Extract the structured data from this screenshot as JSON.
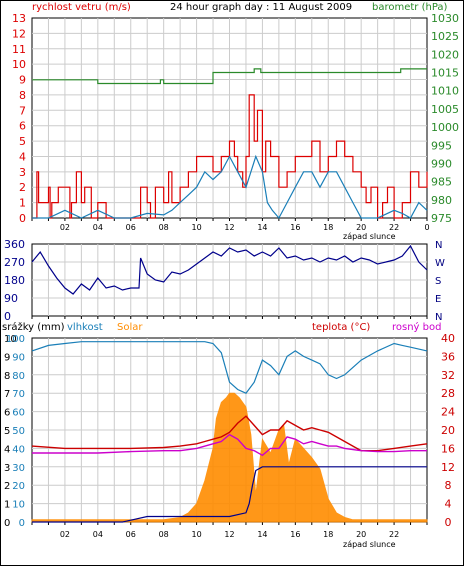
{
  "chart_data": [
    {
      "type": "line",
      "title": "24 hour graph day : 11 August 2009",
      "ylabel_left": "rychlost vetru (m/s)",
      "ylabel_right": "barometr (hPa)",
      "x_label_note": "západ slunce",
      "x_ticks": [
        "02",
        "04",
        "06",
        "08",
        "10",
        "12",
        "14",
        "16",
        "18",
        "20",
        "22"
      ],
      "x_end_tick": "0",
      "yticks_left": [
        0,
        1,
        2,
        3,
        4,
        5,
        6,
        7,
        8,
        9,
        10,
        11,
        12,
        13
      ],
      "yticks_right": [
        975,
        980,
        985,
        990,
        995,
        1000,
        1005,
        1010,
        1015,
        1020,
        1025,
        1030
      ],
      "ylim_left": [
        0,
        13
      ],
      "ylim_right": [
        975,
        1030
      ],
      "grid": true,
      "series": [
        {
          "name": "gust",
          "color": "#dd0000",
          "axis": "left",
          "x": [
            0,
            0.3,
            0.4,
            1.0,
            1.1,
            1.2,
            1.6,
            2.3,
            2.4,
            2.7,
            3.0,
            3.2,
            3.6,
            4.0,
            4.5,
            5.0,
            6.5,
            6.6,
            7.0,
            7.2,
            7.5,
            8.0,
            8.3,
            8.5,
            9.0,
            9.5,
            10.0,
            10.5,
            11.0,
            11.5,
            12.0,
            12.3,
            12.5,
            12.8,
            13.0,
            13.2,
            13.5,
            13.7,
            14.0,
            14.2,
            14.5,
            15.0,
            15.5,
            16.0,
            16.5,
            17.0,
            17.5,
            18.0,
            18.5,
            19.0,
            19.5,
            20.0,
            20.3,
            20.6,
            21.0,
            21.3,
            21.6,
            22.0,
            22.5,
            23.0,
            23.5,
            24.0
          ],
          "y": [
            0,
            3,
            1,
            2,
            0,
            1,
            2,
            0,
            1,
            3,
            1,
            2,
            0,
            1,
            0,
            0,
            0,
            2,
            1,
            0,
            2,
            1,
            3,
            1,
            2,
            3,
            4,
            4,
            3,
            4,
            5,
            4,
            3,
            2,
            4,
            8,
            5,
            7,
            3,
            5,
            4,
            2,
            3,
            4,
            4,
            5,
            3,
            4,
            5,
            4,
            3,
            2,
            1,
            2,
            0,
            1,
            2,
            0,
            1,
            3,
            2,
            3
          ]
        },
        {
          "name": "wind",
          "color": "#1a7fb8",
          "axis": "left",
          "x": [
            0,
            1,
            2,
            3,
            4,
            5,
            6,
            7,
            8,
            8.5,
            9,
            9.5,
            10,
            10.5,
            11,
            11.5,
            12,
            12.5,
            13,
            13.3,
            13.6,
            14,
            14.3,
            14.6,
            15,
            15.5,
            16,
            16.5,
            17,
            17.5,
            18,
            18.5,
            19,
            19.5,
            20,
            21,
            22,
            22.5,
            23,
            23.5,
            24
          ],
          "y": [
            0,
            0,
            0.5,
            0,
            0.5,
            0,
            0,
            0.3,
            0.2,
            0.5,
            1,
            1.5,
            2,
            3,
            2.5,
            3,
            4,
            3,
            2,
            3,
            4,
            3,
            1,
            0.5,
            0,
            1,
            2,
            3,
            3,
            2,
            3,
            3,
            2,
            1,
            0,
            0,
            0.5,
            0.3,
            0,
            1,
            0.5
          ]
        },
        {
          "name": "barometr",
          "color": "#2a8a2a",
          "axis": "right",
          "x": [
            0,
            3.9,
            4,
            7.6,
            7.8,
            8,
            9.5,
            11,
            13.4,
            13.5,
            13.9,
            14,
            22,
            22.4,
            24
          ],
          "y": [
            1013,
            1013,
            1012,
            1012,
            1013,
            1012,
            1012,
            1015,
            1015,
            1016,
            1015,
            1015,
            1015,
            1016,
            1016
          ]
        }
      ]
    },
    {
      "type": "line",
      "title": "",
      "yticks": [
        360,
        270,
        180,
        90,
        0
      ],
      "ylim": [
        0,
        360
      ],
      "direction_labels": [
        "N",
        "W",
        "S",
        "E",
        "N"
      ],
      "x_ticks": [
        "02",
        "04",
        "06",
        "08",
        "10",
        "12",
        "14",
        "16",
        "18",
        "20",
        "22"
      ],
      "grid": true,
      "series": [
        {
          "name": "smer vetru",
          "color": "#00008b",
          "x": [
            0,
            0.5,
            1,
            1.5,
            2,
            2.5,
            3,
            3.5,
            4,
            4.5,
            5,
            5.5,
            6,
            6.5,
            6.6,
            7,
            7.5,
            8,
            8.5,
            9,
            9.5,
            10,
            10.5,
            11,
            11.5,
            12,
            12.5,
            13,
            13.5,
            14,
            14.5,
            15,
            15.5,
            16,
            16.5,
            17,
            17.5,
            18,
            18.5,
            19,
            19.5,
            20,
            20.5,
            21,
            21.5,
            22,
            22.5,
            23,
            23.5,
            24
          ],
          "y": [
            270,
            320,
            250,
            190,
            140,
            110,
            160,
            130,
            190,
            140,
            150,
            130,
            140,
            140,
            290,
            210,
            180,
            170,
            220,
            210,
            230,
            260,
            290,
            320,
            300,
            340,
            320,
            330,
            300,
            320,
            300,
            340,
            290,
            300,
            280,
            290,
            270,
            290,
            280,
            300,
            270,
            290,
            280,
            260,
            270,
            280,
            300,
            350,
            270,
            230
          ]
        }
      ]
    },
    {
      "type": "line",
      "title": "",
      "legend": [
        "srážky (mm)",
        "vlhkost",
        "Solar",
        "teplota (°C)",
        "rosný bod"
      ],
      "x_label_note": "západ slunce",
      "yticks_left_srazky": [
        0,
        1,
        2,
        3,
        4,
        5,
        6,
        7,
        8,
        9,
        10
      ],
      "yticks_left_vlhkost": [
        0,
        10,
        20,
        30,
        40,
        50,
        60,
        70,
        80,
        90,
        100
      ],
      "yticks_left_solar": [
        0,
        80,
        160,
        240,
        320,
        400,
        480,
        560,
        640,
        720,
        800
      ],
      "yticks_right": [
        0,
        4,
        8,
        12,
        16,
        20,
        24,
        28,
        32,
        36,
        40
      ],
      "ylim_vlhkost": [
        0,
        100
      ],
      "ylim_solar": [
        0,
        800
      ],
      "ylim_right": [
        0,
        40
      ],
      "x_ticks": [
        "02",
        "04",
        "06",
        "08",
        "10",
        "12",
        "14",
        "16",
        "18",
        "20",
        "22"
      ],
      "grid": true,
      "series": [
        {
          "name": "vlhkost",
          "color": "#1a7fb8",
          "x": [
            0,
            1,
            2,
            3,
            4,
            5,
            6,
            7,
            8,
            9,
            10,
            10.5,
            11,
            11.5,
            12,
            12.5,
            13,
            13.5,
            14,
            14.5,
            15,
            15.5,
            16,
            16.5,
            17,
            17.5,
            18,
            18.5,
            19,
            19.5,
            20,
            21,
            22,
            22.5,
            23,
            24
          ],
          "y": [
            93,
            96,
            97,
            98,
            98,
            98,
            98,
            98,
            98,
            98,
            98,
            98,
            97,
            92,
            76,
            72,
            70,
            76,
            88,
            85,
            80,
            90,
            93,
            90,
            88,
            86,
            80,
            78,
            80,
            84,
            88,
            93,
            97,
            96,
            95,
            93
          ]
        },
        {
          "name": "Solar",
          "color": "#ff8c00",
          "x": [
            0,
            2,
            4,
            6,
            8,
            9,
            9.5,
            10,
            10.5,
            11,
            11.2,
            11.5,
            11.8,
            12,
            12.3,
            12.6,
            13,
            13.3,
            13.6,
            14,
            14.5,
            15,
            15.3,
            15.6,
            16,
            16.5,
            17,
            17.5,
            18,
            18.5,
            19,
            19.5,
            20,
            22,
            24
          ],
          "y": [
            10,
            10,
            10,
            10,
            10,
            20,
            40,
            80,
            180,
            320,
            450,
            520,
            540,
            560,
            560,
            540,
            500,
            380,
            120,
            360,
            300,
            400,
            420,
            250,
            360,
            320,
            280,
            230,
            100,
            40,
            20,
            10,
            10,
            10,
            10
          ]
        },
        {
          "name": "srážky (mm)",
          "color": "#00008b",
          "x": [
            0,
            5,
            5.5,
            6,
            7,
            8,
            9,
            10,
            11,
            12,
            13,
            13.2,
            13.4,
            13.6,
            14,
            16,
            18,
            20,
            22,
            24
          ],
          "y": [
            0,
            0,
            0,
            0.1,
            0.3,
            0.3,
            0.3,
            0.3,
            0.3,
            0.3,
            0.5,
            1.0,
            2.0,
            2.8,
            3.0,
            3.0,
            3.0,
            3.0,
            3.0,
            3.0
          ]
        },
        {
          "name": "teplota (°C)",
          "color": "#cc0000",
          "x": [
            0,
            2,
            4,
            6,
            8,
            9,
            10,
            10.5,
            11,
            11.5,
            12,
            12.5,
            13,
            13.5,
            14,
            14.5,
            15,
            15.5,
            16,
            16.5,
            17,
            17.5,
            18,
            18.5,
            19,
            19.5,
            20,
            21,
            22,
            23,
            24
          ],
          "y": [
            16.5,
            16,
            16,
            16,
            16.2,
            16.5,
            17,
            17.5,
            18,
            18.5,
            19.5,
            21.5,
            23,
            21,
            19,
            20,
            20,
            22,
            21,
            20,
            20.5,
            20,
            19.5,
            18.5,
            17.5,
            16.5,
            15.5,
            15.5,
            16,
            16.5,
            17
          ]
        },
        {
          "name": "rosný bod",
          "color": "#cc00cc",
          "x": [
            0,
            2,
            4,
            6,
            8,
            9,
            10,
            11,
            11.5,
            12,
            12.5,
            13,
            13.5,
            14,
            14.5,
            15,
            15.5,
            16,
            16.5,
            17,
            17.5,
            18,
            18.5,
            19,
            20,
            21,
            22,
            23,
            24
          ],
          "y": [
            15,
            15,
            15,
            15.3,
            15.5,
            15.5,
            16,
            17,
            17.5,
            19,
            18,
            16,
            15.5,
            14.5,
            16,
            16,
            18.5,
            18,
            17,
            17.5,
            17,
            16.5,
            16.5,
            16,
            15.5,
            15.3,
            15.3,
            15.5,
            15.5
          ]
        }
      ]
    }
  ]
}
